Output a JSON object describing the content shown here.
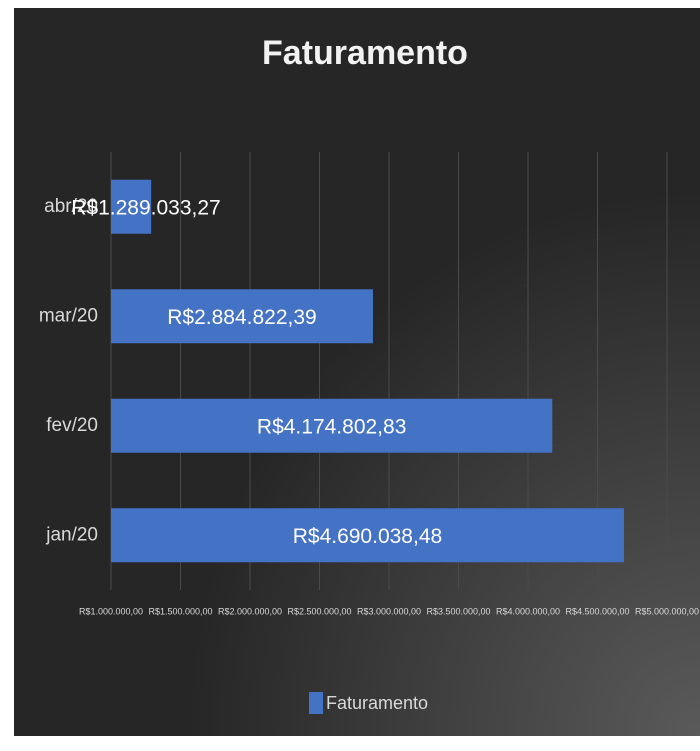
{
  "chart_data": {
    "type": "barh",
    "title": "Faturamento",
    "categories": [
      "jan/20",
      "fev/20",
      "mar/20",
      "abr/20"
    ],
    "series": [
      {
        "name": "Faturamento",
        "color": "#4472c4",
        "values": [
          4690038.48,
          4174802.83,
          2884822.39,
          1289033.27
        ],
        "value_labels": [
          "R$4.690.038,48",
          "R$4.174.802,83",
          "R$2.884.822,39",
          "R$1.289.033,27"
        ]
      }
    ],
    "xlim": [
      1000000,
      5000000
    ],
    "xticks": [
      {
        "value": 1000000,
        "label": "R$1.000.000,00"
      },
      {
        "value": 1500000,
        "label": "R$1.500.000,00"
      },
      {
        "value": 2000000,
        "label": "R$2.000.000,00"
      },
      {
        "value": 2500000,
        "label": "R$2.500.000,00"
      },
      {
        "value": 3000000,
        "label": "R$3.000.000,00"
      },
      {
        "value": 3500000,
        "label": "R$3.500.000,00"
      },
      {
        "value": 4000000,
        "label": "R$4.000.000,00"
      },
      {
        "value": 4500000,
        "label": "R$4.500.000,00"
      },
      {
        "value": 5000000,
        "label": "R$5.000.000,00"
      }
    ],
    "grid": true,
    "legend": "bottom"
  }
}
